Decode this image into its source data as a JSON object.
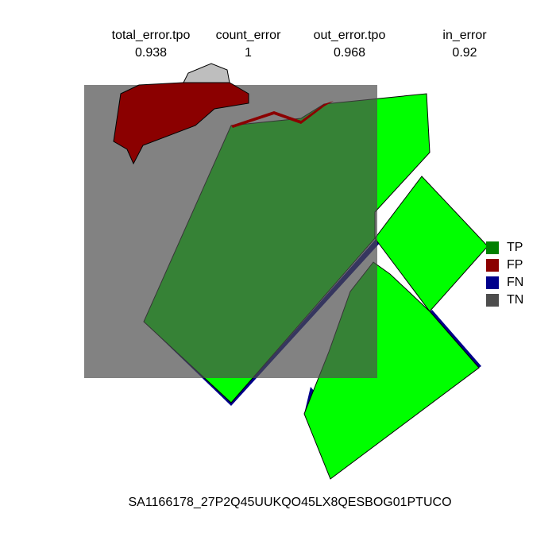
{
  "metrics": [
    {
      "name": "total_error.tpo",
      "value": "0.938"
    },
    {
      "name": "count_error",
      "value": "1"
    },
    {
      "name": "out_error.tpo",
      "value": "0.968"
    },
    {
      "name": "in_error",
      "value": "0.92"
    }
  ],
  "legend": [
    {
      "label": "TP",
      "color": "#008000"
    },
    {
      "label": "FP",
      "color": "#8b0000"
    },
    {
      "label": "FN",
      "color": "#00008b"
    },
    {
      "label": "TN",
      "color": "#4d4d4d"
    }
  ],
  "colors": {
    "truth_region": "#00ff00",
    "prediction_outline": "#bebebe",
    "tn_square": "#4d4d4d",
    "tp_overlap": "#008000",
    "fp_region": "#8b0000",
    "fn_edge": "#00008b"
  },
  "caption": "SA1166178_27P2Q45UUKQO45LX8QESBOG01PTUCO"
}
